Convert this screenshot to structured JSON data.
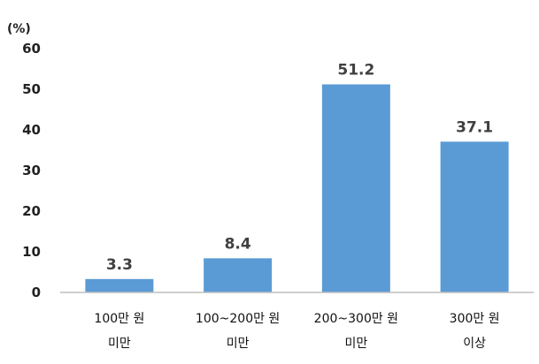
{
  "chart_data": {
    "type": "bar",
    "unit_label": "(%)",
    "categories": [
      [
        "100만 원",
        "미만"
      ],
      [
        "100~200만 원",
        "미만"
      ],
      [
        "200~300만 원",
        "미만"
      ],
      [
        "300만 원",
        "이상"
      ]
    ],
    "values": [
      3.3,
      8.4,
      51.2,
      37.1
    ],
    "data_labels": [
      "3.3",
      "8.4",
      "51.2",
      "37.1"
    ],
    "yticks": [
      0,
      10,
      20,
      30,
      40,
      50,
      60
    ],
    "ylim": [
      0,
      60
    ],
    "bar_color": "#5b9bd5",
    "grid": false,
    "legend": "none"
  }
}
